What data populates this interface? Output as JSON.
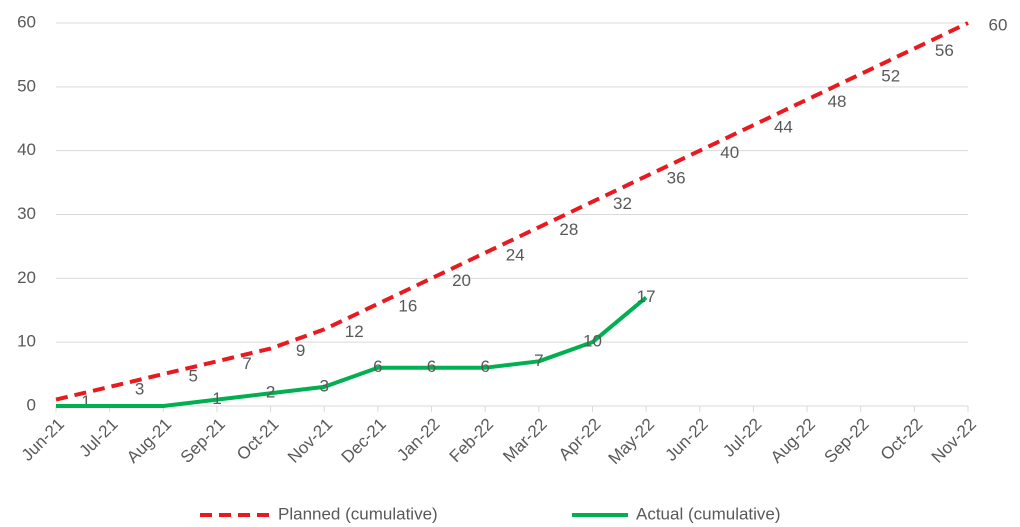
{
  "chart_data": {
    "type": "line",
    "categories": [
      "Jun-21",
      "Jul-21",
      "Aug-21",
      "Sep-21",
      "Oct-21",
      "Nov-21",
      "Dec-21",
      "Jan-22",
      "Feb-22",
      "Mar-22",
      "Apr-22",
      "May-22",
      "Jun-22",
      "Jul-22",
      "Aug-22",
      "Sep-22",
      "Oct-22",
      "Nov-22"
    ],
    "series": [
      {
        "name": "Planned (cumulative)",
        "color": "#e8191f",
        "dashed": true,
        "values": [
          1,
          3,
          5,
          7,
          9,
          12,
          16,
          20,
          24,
          28,
          32,
          36,
          40,
          44,
          48,
          52,
          56,
          60
        ]
      },
      {
        "name": "Actual (cumulative)",
        "color": "#00b050",
        "dashed": false,
        "values": [
          0,
          0,
          0,
          1,
          2,
          3,
          6,
          6,
          6,
          7,
          10,
          17,
          null,
          null,
          null,
          null,
          null,
          null
        ]
      }
    ],
    "ylim": [
      0,
      60
    ],
    "yticks": [
      0,
      10,
      20,
      30,
      40,
      50,
      60
    ],
    "grid": true,
    "legend": "bottom"
  }
}
